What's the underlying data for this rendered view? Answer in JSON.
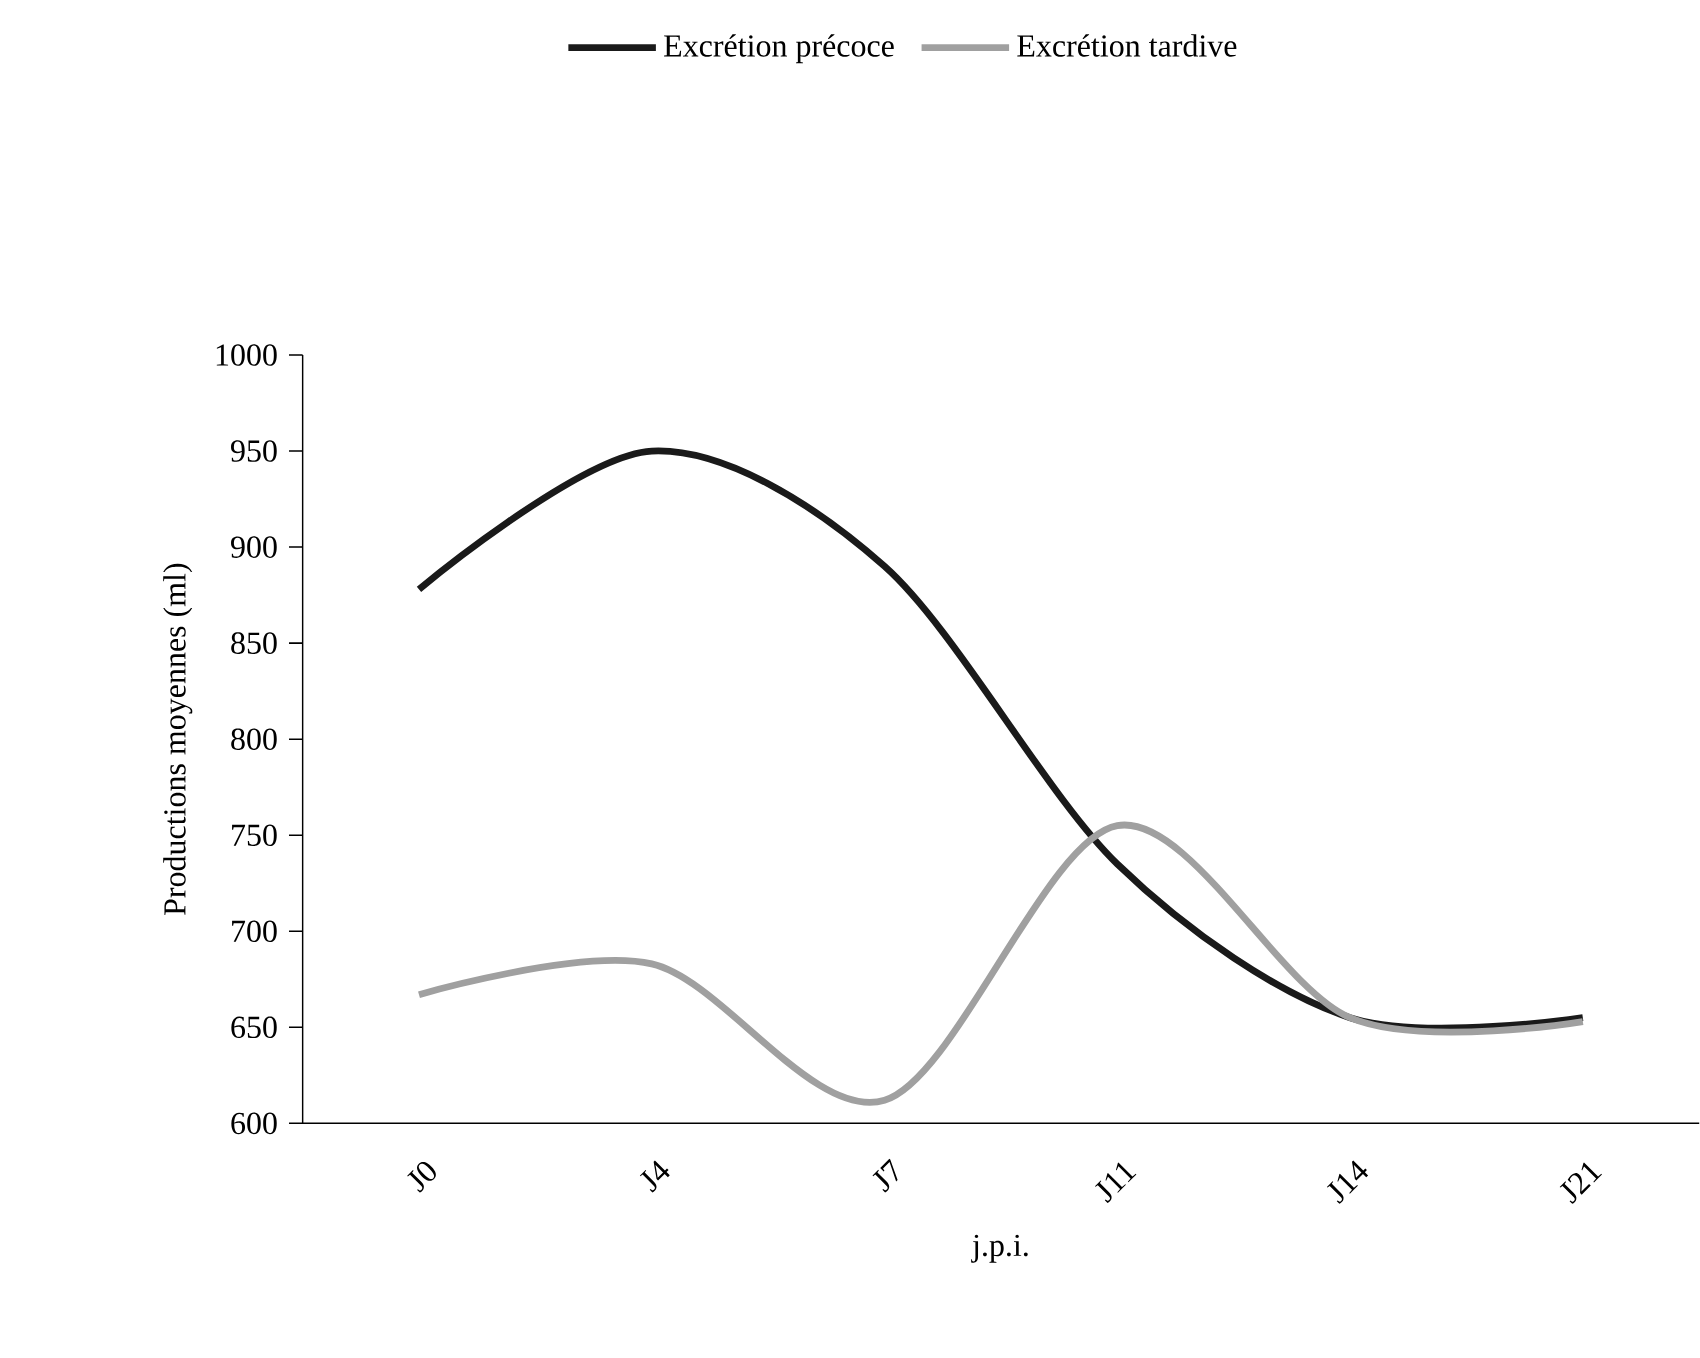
{
  "chart_data": {
    "type": "line",
    "xlabel": "j.p.i.",
    "ylabel": "Productions moyennes (ml)",
    "categories": [
      "J0",
      "J4",
      "J7",
      "J11",
      "J14",
      "J21"
    ],
    "series": [
      {
        "name": "Excrétion précoce",
        "color": "#1a1a1a",
        "values": [
          878,
          950,
          890,
          735,
          655,
          655
        ]
      },
      {
        "name": "Excrétion tardive",
        "color": "#a0a0a0",
        "values": [
          667,
          683,
          612,
          755,
          655,
          653
        ]
      }
    ],
    "ylim": [
      600,
      1000
    ],
    "yticks": [
      600,
      650,
      700,
      750,
      800,
      850,
      900,
      950,
      1000
    ],
    "legend": "top",
    "grid": false,
    "marker": "none",
    "line_style": "solid"
  }
}
